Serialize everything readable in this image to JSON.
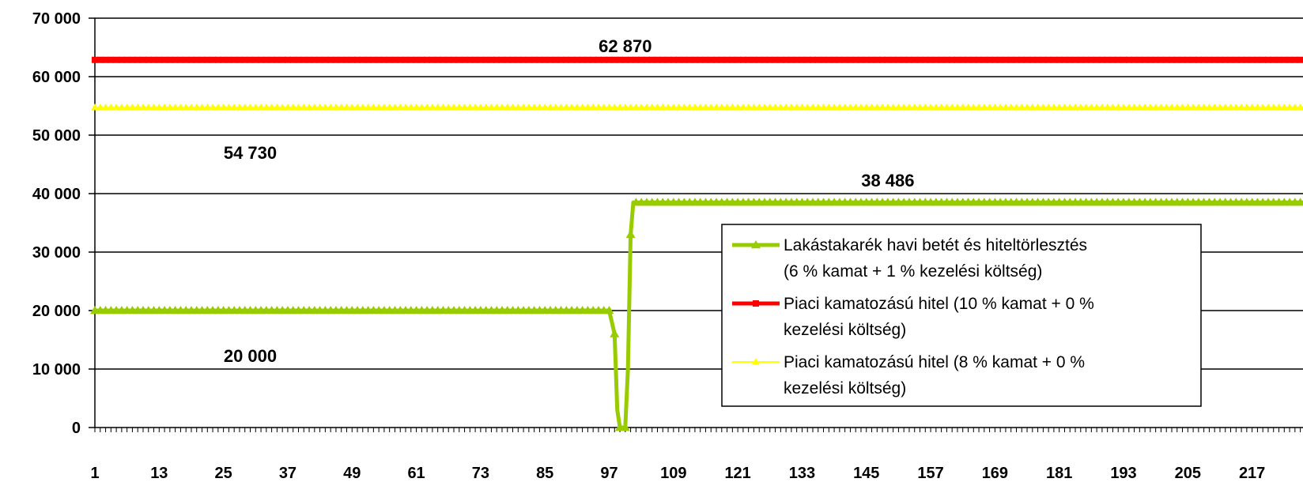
{
  "chart_data": {
    "type": "line",
    "x_range": [
      1,
      228
    ],
    "x_ticks": [
      "1",
      "13",
      "25",
      "37",
      "49",
      "61",
      "73",
      "85",
      "97",
      "109",
      "121",
      "133",
      "145",
      "157",
      "169",
      "181",
      "193",
      "205",
      "217"
    ],
    "ylim": [
      0,
      70000
    ],
    "y_ticks": [
      "0",
      "10 000",
      "20 000",
      "30 000",
      "40 000",
      "50 000",
      "60 000",
      "70 000"
    ],
    "grid": "horizontal",
    "legend_position": "bottom-right",
    "series": [
      {
        "key": "lakastakarek",
        "color": "#99CC00",
        "marker": "triangle",
        "line_width": 5,
        "points": [
          [
            1,
            20000
          ],
          [
            97,
            20000
          ],
          [
            98,
            16000
          ],
          [
            98.5,
            3000
          ],
          [
            99,
            0
          ],
          [
            100,
            0
          ],
          [
            100.5,
            10000
          ],
          [
            101,
            33000
          ],
          [
            101.5,
            38486
          ],
          [
            228,
            38486
          ]
        ]
      },
      {
        "key": "piaci10",
        "color": "#FF0000",
        "marker": "square",
        "line_width": 5,
        "points": [
          [
            1,
            62870
          ],
          [
            228,
            62870
          ]
        ]
      },
      {
        "key": "piaci8",
        "color": "#FFFF00",
        "marker": "triangle",
        "line_width": 2,
        "points": [
          [
            1,
            54730
          ],
          [
            228,
            54730
          ]
        ]
      }
    ],
    "annotations": [
      {
        "text": "62 870",
        "x": 100,
        "y": 62870
      },
      {
        "text": "54 730",
        "x": 30,
        "y": 54730
      },
      {
        "text": "38 486",
        "x": 149,
        "y": 38486
      },
      {
        "text": "20 000",
        "x": 30,
        "y": 20000
      }
    ],
    "legend": [
      {
        "series": "lakastakarek",
        "lines": [
          "Lakástakarék havi betét és hiteltörlesztés",
          "(6 % kamat + 1 % kezelési költség)"
        ]
      },
      {
        "series": "piaci10",
        "lines": [
          "Piaci kamatozású hitel (10 % kamat + 0 %",
          "kezelési költség)"
        ]
      },
      {
        "series": "piaci8",
        "lines": [
          "Piaci kamatozású hitel (8 % kamat + 0 %",
          "kezelési költség)"
        ]
      }
    ]
  }
}
